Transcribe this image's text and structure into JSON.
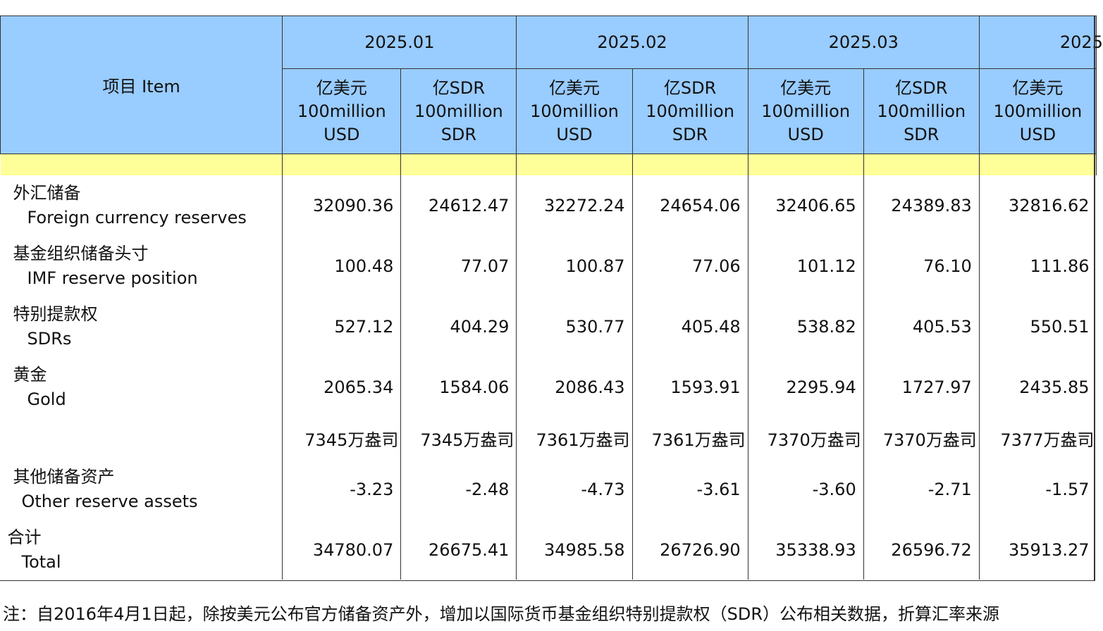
{
  "header": {
    "item_label": "项目  Item",
    "months": [
      "2025.01",
      "2025.02",
      "2025.03",
      "2025"
    ],
    "unit_usd": [
      "亿美元",
      "100million",
      "USD"
    ],
    "unit_sdr": [
      "亿SDR",
      "100million",
      "SDR"
    ]
  },
  "rows": [
    {
      "zh": "外汇储备",
      "en": "Foreign currency reserves",
      "values": [
        "32090.36",
        "24612.47",
        "32272.24",
        "24654.06",
        "32406.65",
        "24389.83",
        "32816.62"
      ]
    },
    {
      "zh": "基金组织储备头寸",
      "en": "IMF reserve position",
      "values": [
        "100.48",
        "77.07",
        "100.87",
        "77.06",
        "101.12",
        "76.10",
        "111.86"
      ]
    },
    {
      "zh": "特别提款权",
      "en": "SDRs",
      "values": [
        "527.12",
        "404.29",
        "530.77",
        "405.48",
        "538.82",
        "405.53",
        "550.51"
      ]
    },
    {
      "zh": "黄金",
      "en": "Gold",
      "values": [
        "2065.34",
        "1584.06",
        "2086.43",
        "1593.91",
        "2295.94",
        "1727.97",
        "2435.85"
      ]
    },
    {
      "zh": "",
      "en": "",
      "values": [
        "7345万盎司",
        "7345万盎司",
        "7361万盎司",
        "7361万盎司",
        "7370万盎司",
        "7370万盎司",
        "7377万盎司"
      ]
    },
    {
      "zh": "其他储备资产",
      "en": "Other reserve assets",
      "values": [
        "-3.23",
        "-2.48",
        "-4.73",
        "-3.61",
        "-3.60",
        "-2.71",
        "-1.57"
      ]
    },
    {
      "zh": "合计",
      "en": "Total",
      "values": [
        "34780.07",
        "26675.41",
        "34985.58",
        "26726.90",
        "35338.93",
        "26596.72",
        "35913.27"
      ]
    }
  ],
  "footnote": "注：自2016年4月1日起，除按美元公布官方储备资产外，增加以国际货币基金组织特别提款权（SDR）公布相关数据，折算汇率来源"
}
